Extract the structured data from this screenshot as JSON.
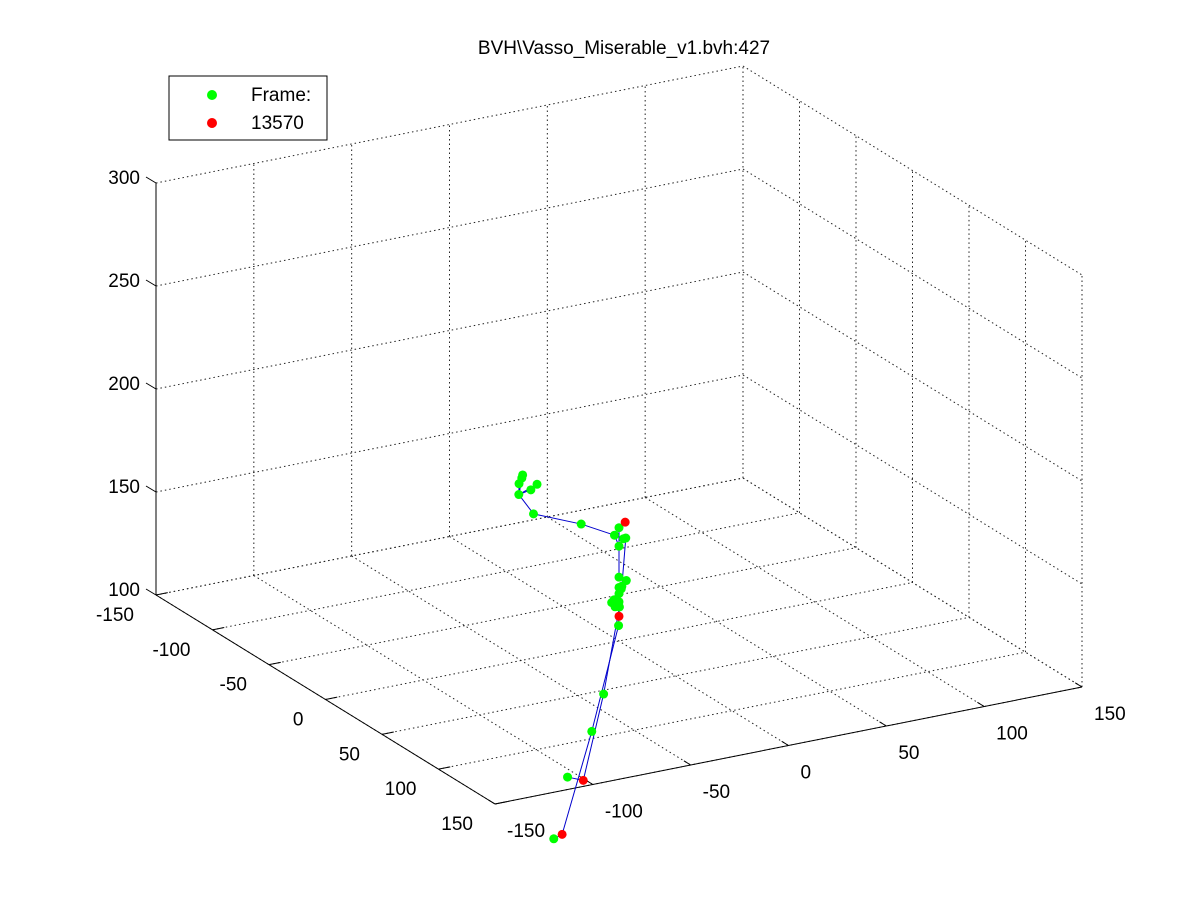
{
  "chart_data": {
    "type": "scatter",
    "title": "BVH\\Vasso_Miserable_v1.bvh:427",
    "xlabel": "",
    "ylabel": "",
    "zlabel": "",
    "grid": true,
    "legend_position": "top-left",
    "axes": {
      "x": {
        "range": [
          -150,
          150
        ],
        "ticks": [
          -150,
          -100,
          -50,
          0,
          50,
          100,
          150
        ]
      },
      "y": {
        "range": [
          -150,
          150
        ],
        "ticks": [
          -150,
          -100,
          -50,
          0,
          50,
          100,
          150
        ]
      },
      "z": {
        "range": [
          100,
          300
        ],
        "ticks": [
          100,
          150,
          200,
          250,
          300
        ]
      }
    },
    "tick_labels": {
      "x": [
        "-150",
        "-100",
        "-50",
        "0",
        "50",
        "100",
        "150"
      ],
      "y": [
        "-150",
        "-100",
        "-50",
        "0",
        "50",
        "100",
        "150"
      ],
      "z": [
        "100",
        "150",
        "200",
        "250",
        "300"
      ]
    },
    "series": [
      {
        "name": "Frame:",
        "color": "#00ff00",
        "marker": "circle"
      },
      {
        "name": "13570",
        "color": "#ff0000",
        "marker": "circle"
      }
    ],
    "bone_color": "#0000cc",
    "skeleton_points": [
      {
        "id": "hips",
        "x": 0,
        "y": 0,
        "z": 112,
        "color": "#ff0000"
      },
      {
        "id": "lhip",
        "x": -10,
        "y": 6,
        "z": 112,
        "color": "#00ff00"
      },
      {
        "id": "lknee",
        "x": -24,
        "y": 6,
        "z": 65,
        "color": "#00ff00"
      },
      {
        "id": "lankle",
        "x": -42,
        "y": 6,
        "z": 17,
        "color": "#ff0000"
      },
      {
        "id": "ltoe",
        "x": -49,
        "y": 2,
        "z": 17,
        "color": "#00ff00"
      },
      {
        "id": "rhip",
        "x": 10,
        "y": -6,
        "z": 112,
        "color": "#00ff00"
      },
      {
        "id": "rknee",
        "x": 14,
        "y": -22,
        "z": 65,
        "color": "#00ff00"
      },
      {
        "id": "rankle",
        "x": 12,
        "y": -36,
        "z": 17,
        "color": "#ff0000"
      },
      {
        "id": "rtoe",
        "x": 15,
        "y": -42,
        "z": 17,
        "color": "#00ff00"
      },
      {
        "id": "spine1",
        "x": 0,
        "y": 0,
        "z": 119,
        "color": "#00ff00"
      },
      {
        "id": "spine2",
        "x": 0,
        "y": 0,
        "z": 123,
        "color": "#00ff00"
      },
      {
        "id": "spine3",
        "x": 0,
        "y": 0,
        "z": 126,
        "color": "#00ff00"
      },
      {
        "id": "spine4",
        "x": 2,
        "y": 0,
        "z": 126,
        "color": "#00ff00"
      },
      {
        "id": "spine5",
        "x": 3,
        "y": 2,
        "z": 130,
        "color": "#00ff00"
      },
      {
        "id": "spine6",
        "x": 0,
        "y": 0,
        "z": 131,
        "color": "#00ff00"
      },
      {
        "id": "neck",
        "x": 0,
        "y": 0,
        "z": 146,
        "color": "#00ff00"
      },
      {
        "id": "head",
        "x": 0,
        "y": 0,
        "z": 155,
        "color": "#00ff00"
      },
      {
        "id": "headtop",
        "x": 2,
        "y": 2,
        "z": 158,
        "color": "#ff0000"
      },
      {
        "id": "lclav",
        "x": -4,
        "y": 0,
        "z": 150,
        "color": "#00ff00"
      },
      {
        "id": "lshoulder",
        "x": -30,
        "y": -2,
        "z": 147,
        "color": "#00ff00"
      },
      {
        "id": "lelbow",
        "x": -67,
        "y": -5,
        "z": 140,
        "color": "#00ff00"
      },
      {
        "id": "lwrist",
        "x": -80,
        "y": -5,
        "z": 145,
        "color": "#00ff00"
      },
      {
        "id": "lhand1",
        "x": -85,
        "y": -2,
        "z": 148,
        "color": "#00ff00"
      },
      {
        "id": "lhand2",
        "x": -86,
        "y": 0,
        "z": 150,
        "color": "#00ff00"
      },
      {
        "id": "lhand3",
        "x": -87,
        "y": 1,
        "z": 151,
        "color": "#00ff00"
      },
      {
        "id": "lhand4",
        "x": -76,
        "y": 2,
        "z": 150,
        "color": "#00ff00"
      },
      {
        "id": "lhand5",
        "x": -78,
        "y": 0,
        "z": 147,
        "color": "#00ff00"
      },
      {
        "id": "rclav",
        "x": 4,
        "y": 0,
        "z": 151,
        "color": "#00ff00"
      },
      {
        "id": "rshoulder",
        "x": 6,
        "y": 0,
        "z": 152,
        "color": "#00ff00"
      },
      {
        "id": "relbow",
        "x": 6,
        "y": -2,
        "z": 129,
        "color": "#00ff00"
      },
      {
        "id": "rwrist",
        "x": -1,
        "y": -2,
        "z": 120,
        "color": "#00ff00"
      },
      {
        "id": "rhand1",
        "x": 0,
        "y": -2,
        "z": 117,
        "color": "#00ff00"
      },
      {
        "id": "rhand2",
        "x": -3,
        "y": -2,
        "z": 118,
        "color": "#00ff00"
      }
    ],
    "bones": [
      [
        "hips",
        "lhip"
      ],
      [
        "lhip",
        "lknee"
      ],
      [
        "lknee",
        "lankle"
      ],
      [
        "lankle",
        "ltoe"
      ],
      [
        "hips",
        "rhip"
      ],
      [
        "rhip",
        "rknee"
      ],
      [
        "rknee",
        "rankle"
      ],
      [
        "rankle",
        "rtoe"
      ],
      [
        "hips",
        "spine1"
      ],
      [
        "spine1",
        "spine2"
      ],
      [
        "spine2",
        "spine3"
      ],
      [
        "spine3",
        "spine4"
      ],
      [
        "spine4",
        "spine5"
      ],
      [
        "spine5",
        "spine6"
      ],
      [
        "spine6",
        "neck"
      ],
      [
        "neck",
        "head"
      ],
      [
        "head",
        "headtop"
      ],
      [
        "neck",
        "lclav"
      ],
      [
        "lclav",
        "lshoulder"
      ],
      [
        "lshoulder",
        "lelbow"
      ],
      [
        "lelbow",
        "lwrist"
      ],
      [
        "lwrist",
        "lhand1"
      ],
      [
        "lwrist",
        "lhand2"
      ],
      [
        "lwrist",
        "lhand3"
      ],
      [
        "lwrist",
        "lhand4"
      ],
      [
        "lwrist",
        "lhand5"
      ],
      [
        "neck",
        "rclav"
      ],
      [
        "rclav",
        "rshoulder"
      ],
      [
        "rshoulder",
        "relbow"
      ],
      [
        "relbow",
        "rwrist"
      ],
      [
        "rwrist",
        "rhand1"
      ],
      [
        "rwrist",
        "rhand2"
      ]
    ]
  }
}
